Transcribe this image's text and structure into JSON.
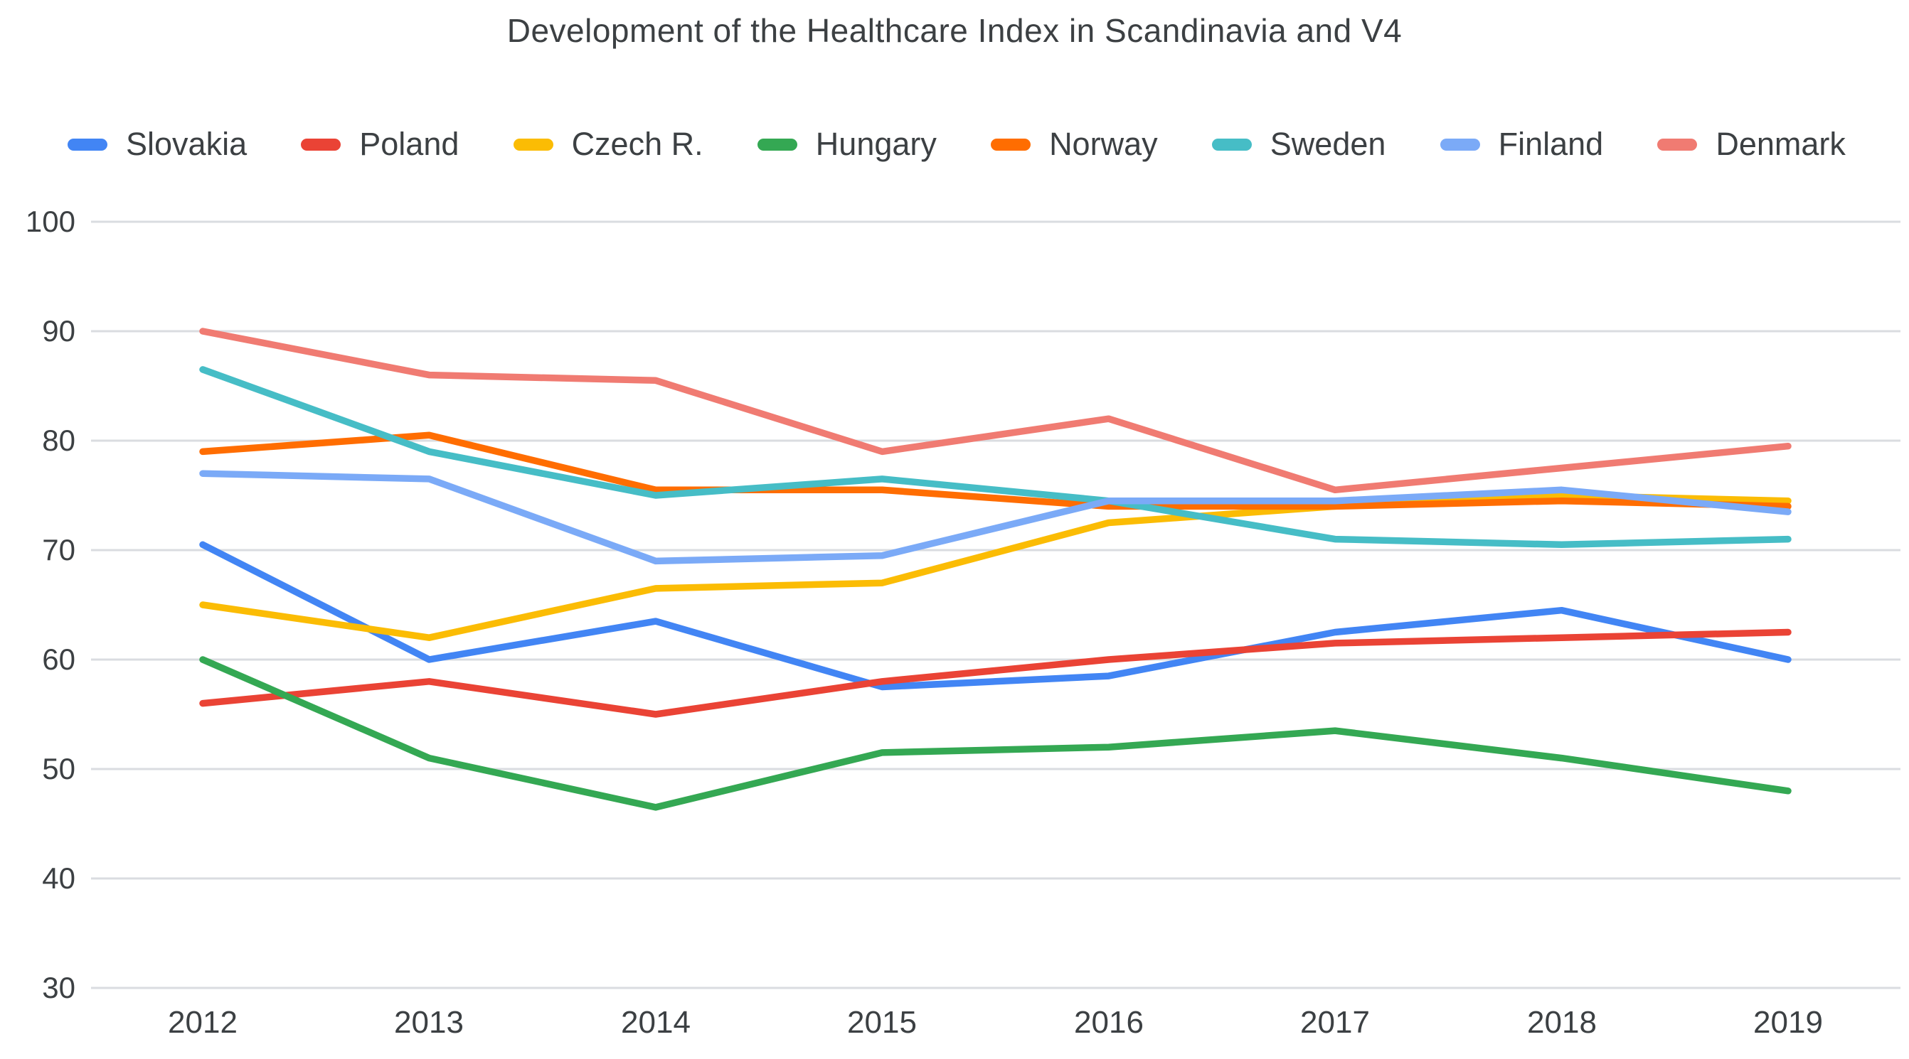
{
  "chart_data": {
    "type": "line",
    "title": "Development of the Healthcare Index in Scandinavia and V4",
    "x": [
      "2012",
      "2013",
      "2014",
      "2015",
      "2016",
      "2017",
      "2018",
      "2019"
    ],
    "xlabel": "",
    "ylabel": "",
    "yticks": [
      100,
      90,
      80,
      70,
      60,
      50,
      40,
      30
    ],
    "ylim": [
      30,
      100
    ],
    "grid": "horizontal",
    "gridline_color": "#dadce0",
    "legend_position": "top",
    "series": [
      {
        "name": "Slovakia",
        "color": "#4285F4",
        "values": [
          70.5,
          60,
          63.5,
          57.5,
          58.5,
          62.5,
          64.5,
          60
        ]
      },
      {
        "name": "Poland",
        "color": "#EA4335",
        "values": [
          56,
          58,
          55,
          58,
          60,
          61.5,
          62,
          62.5
        ]
      },
      {
        "name": "Czech R.",
        "color": "#FBBC04",
        "values": [
          65,
          62,
          66.5,
          67,
          72.5,
          74,
          75,
          74.5
        ]
      },
      {
        "name": "Hungary",
        "color": "#34A853",
        "values": [
          60,
          51,
          46.5,
          51.5,
          52,
          53.5,
          51,
          48
        ]
      },
      {
        "name": "Norway",
        "color": "#FF6D01",
        "values": [
          79,
          80.5,
          75.5,
          75.5,
          74,
          74,
          74.5,
          74
        ]
      },
      {
        "name": "Sweden",
        "color": "#46BDC6",
        "values": [
          86.5,
          79,
          75,
          76.5,
          74.5,
          71,
          70.5,
          71
        ]
      },
      {
        "name": "Finland",
        "color": "#7BAAF7",
        "values": [
          77,
          76.5,
          69,
          69.5,
          74.5,
          74.5,
          75.5,
          73.5
        ]
      },
      {
        "name": "Denmark",
        "color": "#F07B72",
        "values": [
          90,
          86,
          85.5,
          79,
          82,
          75.5,
          77.5,
          79.5
        ]
      }
    ]
  }
}
